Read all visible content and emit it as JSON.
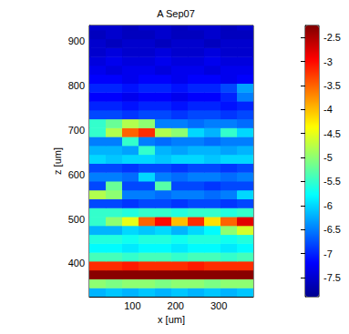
{
  "chart_data": {
    "type": "heatmap",
    "title": "A Sep07",
    "xlabel": "x [um]",
    "ylabel": "z [um]",
    "xlim": [
      0,
      380
    ],
    "ylim": [
      325,
      935
    ],
    "xticks": [
      100,
      200,
      300
    ],
    "yticks": [
      400,
      500,
      600,
      700,
      800,
      900
    ],
    "x_edges": [
      0,
      38,
      76,
      114,
      152,
      190,
      228,
      266,
      304,
      342,
      380
    ],
    "z_edges": [
      325,
      345,
      365,
      385,
      405,
      425,
      445,
      465,
      485,
      505,
      525,
      545,
      565,
      585,
      605,
      625,
      645,
      665,
      685,
      705,
      725,
      745,
      765,
      785,
      805,
      825,
      845,
      865,
      885,
      905,
      925,
      935
    ],
    "cells": [
      [
        -6.2,
        -6.1,
        -6.2,
        -6.1,
        -6.2,
        -6.1,
        -6.2,
        -6.1,
        -6.2,
        -6.1
      ],
      [
        -5.0,
        -5.1,
        -5.0,
        -5.0,
        -5.1,
        -5.0,
        -5.0,
        -5.1,
        -5.0,
        -5.0
      ],
      [
        -2.3,
        -2.3,
        -2.3,
        -2.3,
        -2.3,
        -2.3,
        -2.3,
        -2.3,
        -2.3,
        -2.3
      ],
      [
        -3.2,
        -3.2,
        -3.1,
        -3.2,
        -3.2,
        -3.2,
        -3.1,
        -3.2,
        -3.2,
        -3.2
      ],
      [
        -5.4,
        -5.4,
        -5.5,
        -5.4,
        -5.4,
        -5.5,
        -5.4,
        -5.4,
        -5.5,
        -5.4
      ],
      [
        -5.8,
        -5.8,
        -5.9,
        -5.8,
        -5.8,
        -5.9,
        -5.8,
        -5.8,
        -5.9,
        -5.8
      ],
      [
        -5.6,
        -5.6,
        -5.7,
        -5.6,
        -5.6,
        -5.7,
        -5.6,
        -5.6,
        -5.7,
        -5.6
      ],
      [
        -6.2,
        -6.2,
        -6.0,
        -6.1,
        -6.0,
        -6.2,
        -6.0,
        -5.8,
        -5.0,
        -4.6
      ],
      [
        -5.5,
        -5.0,
        -4.5,
        -3.5,
        -3.0,
        -4.0,
        -3.2,
        -4.2,
        -3.5,
        -2.8
      ],
      [
        -5.5,
        -5.5,
        -5.6,
        -5.5,
        -5.5,
        -5.6,
        -5.5,
        -5.5,
        -5.6,
        -5.5
      ],
      [
        -6.8,
        -6.8,
        -6.9,
        -6.8,
        -6.8,
        -6.9,
        -6.8,
        -6.8,
        -6.9,
        -6.8
      ],
      [
        -4.8,
        -5.0,
        -6.5,
        -6.5,
        -6.6,
        -6.5,
        -6.5,
        -6.6,
        -6.5,
        -6.0
      ],
      [
        -6.8,
        -5.2,
        -6.8,
        -6.8,
        -5.3,
        -6.8,
        -6.8,
        -6.9,
        -6.8,
        -6.8
      ],
      [
        -6.5,
        -6.5,
        -6.6,
        -6.0,
        -6.5,
        -6.6,
        -6.5,
        -6.5,
        -6.6,
        -6.5
      ],
      [
        -6.8,
        -6.8,
        -6.9,
        -6.8,
        -6.8,
        -6.9,
        -6.8,
        -6.8,
        -6.9,
        -6.8
      ],
      [
        -6.0,
        -6.1,
        -6.0,
        -6.0,
        -6.1,
        -6.0,
        -6.0,
        -6.1,
        -6.0,
        -6.0
      ],
      [
        -6.2,
        -6.2,
        -6.3,
        -5.5,
        -6.2,
        -6.3,
        -6.2,
        -6.2,
        -6.3,
        -6.2
      ],
      [
        -6.5,
        -6.5,
        -5.5,
        -6.5,
        -6.6,
        -6.5,
        -6.5,
        -6.6,
        -6.5,
        -6.5
      ],
      [
        -5.5,
        -4.8,
        -3.5,
        -3.2,
        -4.8,
        -5.0,
        -6.0,
        -6.2,
        -5.5,
        -6.0
      ],
      [
        -5.5,
        -5.2,
        -4.8,
        -5.0,
        -6.5,
        -6.5,
        -6.6,
        -6.5,
        -6.5,
        -6.6
      ],
      [
        -6.8,
        -6.8,
        -6.9,
        -6.8,
        -6.8,
        -6.9,
        -6.8,
        -6.8,
        -6.9,
        -6.8
      ],
      [
        -7.0,
        -7.0,
        -7.1,
        -7.0,
        -7.0,
        -7.1,
        -7.0,
        -7.0,
        -7.1,
        -7.0
      ],
      [
        -7.2,
        -7.2,
        -7.3,
        -7.2,
        -7.2,
        -7.3,
        -7.2,
        -7.2,
        -7.0,
        -6.5
      ],
      [
        -7.0,
        -7.0,
        -7.1,
        -7.0,
        -7.0,
        -7.1,
        -7.0,
        -7.0,
        -6.8,
        -6.3
      ],
      [
        -7.2,
        -7.2,
        -7.3,
        -7.2,
        -7.2,
        -7.3,
        -7.2,
        -7.2,
        -7.3,
        -7.2
      ],
      [
        -7.3,
        -7.4,
        -7.3,
        -7.3,
        -7.4,
        -7.3,
        -7.3,
        -7.4,
        -7.3,
        -7.3
      ],
      [
        -7.4,
        -7.3,
        -7.4,
        -7.4,
        -7.3,
        -7.4,
        -7.4,
        -7.3,
        -7.4,
        -7.4
      ],
      [
        -7.5,
        -7.4,
        -7.5,
        -7.5,
        -7.4,
        -7.5,
        -7.5,
        -7.4,
        -7.5,
        -7.5
      ],
      [
        -7.5,
        -7.6,
        -7.5,
        -7.5,
        -7.6,
        -7.5,
        -7.5,
        -7.6,
        -7.5,
        -7.5
      ],
      [
        -7.6,
        -7.5,
        -7.6,
        -7.6,
        -7.5,
        -7.6,
        -7.6,
        -7.5,
        -7.6,
        -7.6
      ],
      [
        -7.5,
        -7.5,
        -7.6,
        -7.5,
        -7.5,
        -7.6,
        -7.5,
        -7.5,
        -7.6,
        -7.5
      ]
    ],
    "clim": [
      -7.9,
      -2.25
    ],
    "cticks": [
      -7.5,
      -7,
      -6.5,
      -6,
      -5.5,
      -5,
      -4.5,
      -4,
      -3.5,
      -3,
      -2.5
    ]
  }
}
